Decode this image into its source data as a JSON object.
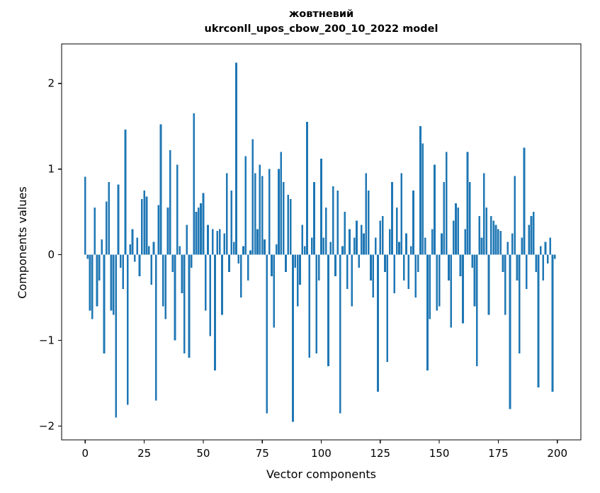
{
  "chart_data": {
    "type": "bar",
    "title": "жовтневий",
    "subtitle": "ukrconll_upos_cbow_200_10_2022 model",
    "xlabel": "Vector components",
    "ylabel": "Components values",
    "xlim": [
      -10,
      210
    ],
    "ylim": [
      -2.16,
      2.46
    ],
    "xticks": [
      0,
      25,
      50,
      75,
      100,
      125,
      150,
      175,
      200
    ],
    "yticks": [
      -2,
      -1,
      0,
      1,
      2
    ],
    "ytick_labels": [
      "−2",
      "−1",
      "0",
      "1",
      "2"
    ],
    "grid": false,
    "legend": "none",
    "bar_color": "#1f77b4",
    "bar_width": 0.8,
    "x_start": 0,
    "values": [
      0.91,
      -0.05,
      -0.65,
      -0.75,
      0.55,
      -0.6,
      -0.3,
      0.18,
      -1.15,
      0.62,
      0.85,
      -0.65,
      -0.7,
      -1.9,
      0.82,
      -0.15,
      -0.4,
      1.46,
      -1.75,
      0.12,
      0.3,
      -0.08,
      0.2,
      -0.25,
      0.65,
      0.75,
      0.68,
      0.1,
      -0.35,
      0.15,
      -1.7,
      0.58,
      1.52,
      -0.6,
      -0.75,
      0.55,
      1.22,
      -0.2,
      -1.0,
      1.05,
      0.1,
      -0.45,
      -1.15,
      0.35,
      -1.2,
      -0.15,
      1.65,
      0.5,
      0.55,
      0.6,
      0.72,
      -0.65,
      0.35,
      -0.95,
      0.3,
      -1.35,
      0.28,
      0.3,
      -0.7,
      0.25,
      0.95,
      -0.2,
      0.75,
      0.15,
      2.24,
      -0.1,
      -0.5,
      0.1,
      1.15,
      -0.3,
      0.05,
      1.35,
      0.95,
      0.3,
      1.05,
      0.92,
      0.18,
      -1.85,
      1.0,
      -0.25,
      -0.85,
      0.12,
      1.0,
      1.2,
      0.85,
      -0.2,
      0.7,
      0.65,
      -1.95,
      -0.15,
      -0.6,
      -0.35,
      0.35,
      0.1,
      1.55,
      -1.2,
      0.2,
      0.85,
      -1.15,
      -0.3,
      1.12,
      0.2,
      0.55,
      -1.3,
      0.15,
      0.8,
      -0.25,
      0.75,
      -1.85,
      0.1,
      0.5,
      -0.4,
      0.3,
      -0.6,
      0.2,
      0.4,
      -0.15,
      0.35,
      0.25,
      0.95,
      0.75,
      -0.3,
      -0.5,
      0.2,
      -1.6,
      0.4,
      0.45,
      -0.2,
      -1.25,
      0.3,
      0.85,
      -0.45,
      0.55,
      0.15,
      0.95,
      -0.3,
      0.25,
      -0.4,
      0.1,
      0.75,
      -0.5,
      -0.2,
      1.5,
      1.3,
      0.2,
      -1.35,
      -0.75,
      0.3,
      1.05,
      -0.65,
      -0.6,
      0.25,
      0.85,
      1.2,
      -0.3,
      -0.85,
      0.4,
      0.6,
      0.55,
      -0.25,
      -0.8,
      0.3,
      1.2,
      0.85,
      -0.15,
      -0.6,
      -1.3,
      0.45,
      0.2,
      0.95,
      0.55,
      -0.7,
      0.45,
      0.4,
      0.35,
      0.3,
      0.28,
      -0.2,
      -0.7,
      0.15,
      -1.8,
      0.25,
      0.92,
      -0.3,
      -1.15,
      0.2,
      1.25,
      -0.4,
      0.35,
      0.45,
      0.5,
      -0.2,
      -1.55,
      0.1,
      -0.3,
      0.15,
      -0.1,
      0.2,
      -1.6,
      -0.05
    ]
  }
}
